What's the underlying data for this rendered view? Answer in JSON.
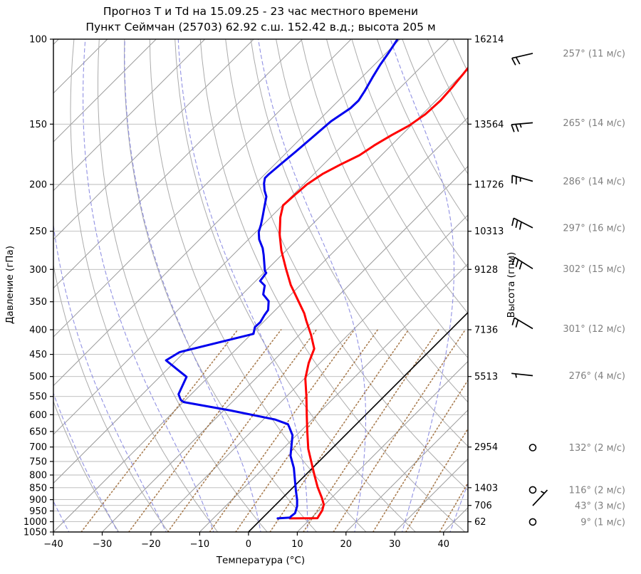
{
  "title": {
    "line1": "Прогноз Т и Td на 15.09.25 - 23 час местного времени",
    "line2": "Пункт Сеймчан (25703) 62.92 с.ш. 152.42 в.д.; высота 205 м"
  },
  "axes": {
    "pressure_label": "Давление (гПа)",
    "temperature_label": "Температура (°C)",
    "height_label": "Высота (гпм)",
    "pressure_ticks": [
      100,
      150,
      200,
      250,
      300,
      350,
      400,
      450,
      500,
      550,
      600,
      650,
      700,
      750,
      800,
      850,
      900,
      950,
      1000,
      1050
    ],
    "temperature_ticks": [
      -40,
      -30,
      -20,
      -10,
      0,
      10,
      20,
      30,
      40
    ],
    "pressure_range": [
      100,
      1050
    ],
    "temperature_range": [
      -40,
      45
    ],
    "height_ticks": [
      {
        "p": 100,
        "label": "16214"
      },
      {
        "p": 150,
        "label": "13564"
      },
      {
        "p": 200,
        "label": "11726"
      },
      {
        "p": 250,
        "label": "10313"
      },
      {
        "p": 300,
        "label": "9128"
      },
      {
        "p": 400,
        "label": "7136"
      },
      {
        "p": 500,
        "label": "5513"
      },
      {
        "p": 700,
        "label": "2954"
      },
      {
        "p": 850,
        "label": "1403"
      },
      {
        "p": 925,
        "label": "706"
      },
      {
        "p": 1000,
        "label": "62"
      }
    ]
  },
  "chart_data": {
    "type": "skew-t-log-p",
    "temperature_profile": [
      [
        114,
        -50.2
      ],
      [
        118,
        -49.9
      ],
      [
        126,
        -49.4
      ],
      [
        134,
        -49.1
      ],
      [
        143,
        -49.4
      ],
      [
        151,
        -50.4
      ],
      [
        158,
        -52.0
      ],
      [
        166,
        -53.5
      ],
      [
        174,
        -54.5
      ],
      [
        182,
        -56.5
      ],
      [
        190,
        -58.2
      ],
      [
        200,
        -59.3
      ],
      [
        210,
        -59.6
      ],
      [
        221,
        -59.9
      ],
      [
        234,
        -58.0
      ],
      [
        254,
        -54.6
      ],
      [
        274,
        -51.0
      ],
      [
        299,
        -46.3
      ],
      [
        323,
        -42.0
      ],
      [
        349,
        -37.1
      ],
      [
        370,
        -33.4
      ],
      [
        383,
        -31.5
      ],
      [
        410,
        -27.6
      ],
      [
        438,
        -24.1
      ],
      [
        469,
        -22.3
      ],
      [
        505,
        -19.8
      ],
      [
        549,
        -16.0
      ],
      [
        600,
        -12.1
      ],
      [
        648,
        -8.7
      ],
      [
        706,
        -4.8
      ],
      [
        757,
        -1.1
      ],
      [
        804,
        2.1
      ],
      [
        848,
        5.0
      ],
      [
        893,
        8.1
      ],
      [
        921,
        9.8
      ],
      [
        947,
        10.7
      ],
      [
        983,
        11.3
      ],
      [
        984,
        5.7
      ]
    ],
    "dewpoint_profile": [
      [
        100,
        -70.5
      ],
      [
        107,
        -69.5
      ],
      [
        113,
        -68.8
      ],
      [
        120,
        -67.8
      ],
      [
        128,
        -66.6
      ],
      [
        134,
        -65.9
      ],
      [
        139,
        -66.0
      ],
      [
        148,
        -67.3
      ],
      [
        159,
        -67.8
      ],
      [
        171,
        -68.3
      ],
      [
        181,
        -68.8
      ],
      [
        191,
        -69.2
      ],
      [
        194,
        -69.2
      ],
      [
        199,
        -68.3
      ],
      [
        206,
        -66.7
      ],
      [
        212,
        -65.1
      ],
      [
        222,
        -63.5
      ],
      [
        233,
        -61.8
      ],
      [
        242,
        -60.5
      ],
      [
        251,
        -59.4
      ],
      [
        260,
        -57.8
      ],
      [
        271,
        -55.3
      ],
      [
        280,
        -53.7
      ],
      [
        302,
        -50.2
      ],
      [
        305,
        -49.5
      ],
      [
        317,
        -49.1
      ],
      [
        324,
        -47.2
      ],
      [
        338,
        -45.7
      ],
      [
        349,
        -43.2
      ],
      [
        364,
        -41.5
      ],
      [
        373,
        -41.2
      ],
      [
        386,
        -40.6
      ],
      [
        395,
        -40.7
      ],
      [
        408,
        -39.6
      ],
      [
        445,
        -51.0
      ],
      [
        463,
        -52.1
      ],
      [
        501,
        -44.5
      ],
      [
        544,
        -42.6
      ],
      [
        559,
        -41.0
      ],
      [
        565,
        -39.9
      ],
      [
        588,
        -28.6
      ],
      [
        614,
        -17.6
      ],
      [
        628,
        -14.0
      ],
      [
        635,
        -13.3
      ],
      [
        662,
        -10.8
      ],
      [
        730,
        -7.0
      ],
      [
        774,
        -3.8
      ],
      [
        820,
        -1.1
      ],
      [
        863,
        1.3
      ],
      [
        901,
        3.4
      ],
      [
        929,
        4.7
      ],
      [
        960,
        5.7
      ],
      [
        976,
        5.5
      ],
      [
        980,
        5.6
      ],
      [
        984,
        3.2
      ]
    ],
    "wind_levels": [
      {
        "p": 107,
        "dir": 257,
        "speed": 11,
        "label": "257° (11 м/с)"
      },
      {
        "p": 149,
        "dir": 265,
        "speed": 14,
        "label": "265° (14 м/с)"
      },
      {
        "p": 197,
        "dir": 286,
        "speed": 14,
        "label": "286° (14 м/с)"
      },
      {
        "p": 246,
        "dir": 297,
        "speed": 16,
        "label": "297° (16 м/с)"
      },
      {
        "p": 299,
        "dir": 302,
        "speed": 15,
        "label": "302° (15 м/с)"
      },
      {
        "p": 398,
        "dir": 301,
        "speed": 12,
        "label": "301° (12 м/с)"
      },
      {
        "p": 498,
        "dir": 276,
        "speed": 4,
        "label": "276° (4 м/с)"
      },
      {
        "p": 702,
        "dir": 132,
        "speed": 2,
        "label": "132° (2 м/с)"
      },
      {
        "p": 859,
        "dir": 116,
        "speed": 2,
        "label": "116° (2 м/с)"
      },
      {
        "p": 926,
        "dir": 43,
        "speed": 3,
        "label": "43° (3 м/с)"
      },
      {
        "p": 1001,
        "dir": 9,
        "speed": 1,
        "label": "9° (1 м/с)"
      }
    ],
    "background": {
      "isotherm_min": -140,
      "isotherm_max": 40,
      "isotherm_step": 10,
      "zero_isotherm": 0,
      "dry_adiabat_min": -30,
      "dry_adiabat_max": 170,
      "dry_adiabat_step": 10,
      "moist_adiabats": [
        -40,
        -30,
        -20,
        -10,
        0,
        10,
        20,
        30,
        40
      ],
      "mixing_ratios": [
        0.2,
        0.5,
        1,
        2,
        3,
        5,
        8,
        12,
        20,
        30,
        45
      ],
      "mixing_ratio_top_p": 400
    },
    "colors": {
      "temperature": "#ff0000",
      "dewpoint": "#0000ee",
      "isotherm": "#9a9a9a",
      "grid": "#b8b8b8",
      "dry_adiabat": "#ababab",
      "moist_adiabat": "#8585e0",
      "mixing_ratio": "#9a6633",
      "zero_line": "#000000",
      "wind_label": "#7f7f7f",
      "spine": "#000000"
    }
  }
}
